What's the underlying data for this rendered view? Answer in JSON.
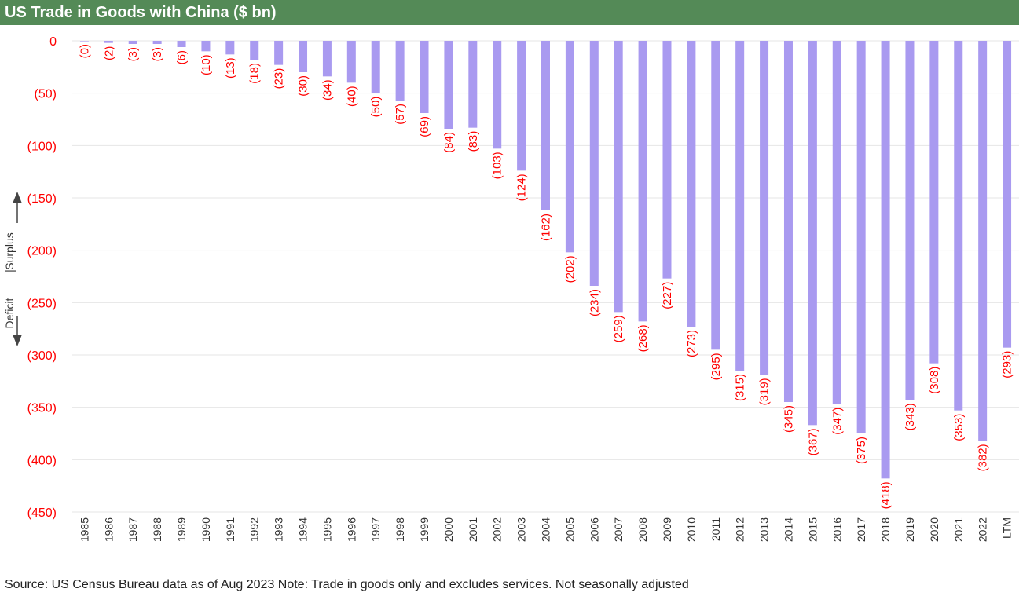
{
  "title": "US Trade in Goods with China ($ bn)",
  "source": "Source: US Census Bureau data as of Aug 2023 Note: Trade in goods only and excludes services. Not seasonally adjusted",
  "side_annotation": {
    "top": "Surplus",
    "separator": "|",
    "bottom": "Deficit"
  },
  "colors": {
    "bar": "#a99af0",
    "label": "#ff0000",
    "header": "#548a57",
    "grid": "#e6e6e6"
  },
  "chart_data": {
    "type": "bar",
    "categories": [
      "1985",
      "1986",
      "1987",
      "1988",
      "1989",
      "1990",
      "1991",
      "1992",
      "1993",
      "1994",
      "1995",
      "1996",
      "1997",
      "1998",
      "1999",
      "2000",
      "2001",
      "2002",
      "2003",
      "2004",
      "2005",
      "2006",
      "2007",
      "2008",
      "2009",
      "2010",
      "2011",
      "2012",
      "2013",
      "2014",
      "2015",
      "2016",
      "2017",
      "2018",
      "2019",
      "2020",
      "2021",
      "2022",
      "LTM"
    ],
    "values": [
      0,
      -2,
      -3,
      -3,
      -6,
      -10,
      -13,
      -18,
      -23,
      -30,
      -34,
      -40,
      -50,
      -57,
      -69,
      -84,
      -83,
      -103,
      -124,
      -162,
      -202,
      -234,
      -259,
      -268,
      -227,
      -273,
      -295,
      -315,
      -319,
      -345,
      -367,
      -347,
      -375,
      -418,
      -343,
      -308,
      -353,
      -382,
      -293
    ],
    "data_labels": [
      "(0)",
      "(2)",
      "(3)",
      "(3)",
      "(6)",
      "(10)",
      "(13)",
      "(18)",
      "(23)",
      "(30)",
      "(34)",
      "(40)",
      "(50)",
      "(57)",
      "(69)",
      "(84)",
      "(83)",
      "(103)",
      "(124)",
      "(162)",
      "(202)",
      "(234)",
      "(259)",
      "(268)",
      "(227)",
      "(273)",
      "(295)",
      "(315)",
      "(319)",
      "(345)",
      "(367)",
      "(347)",
      "(375)",
      "(418)",
      "(343)",
      "(308)",
      "(353)",
      "(382)",
      "(293)"
    ],
    "y_ticks": [
      0,
      -50,
      -100,
      -150,
      -200,
      -250,
      -300,
      -350,
      -400,
      -450
    ],
    "y_tick_labels": [
      "0",
      "(50)",
      "(100)",
      "(150)",
      "(200)",
      "(250)",
      "(300)",
      "(350)",
      "(400)",
      "(450)"
    ],
    "ylim": [
      -450,
      0
    ],
    "grid": true,
    "legend": false
  }
}
